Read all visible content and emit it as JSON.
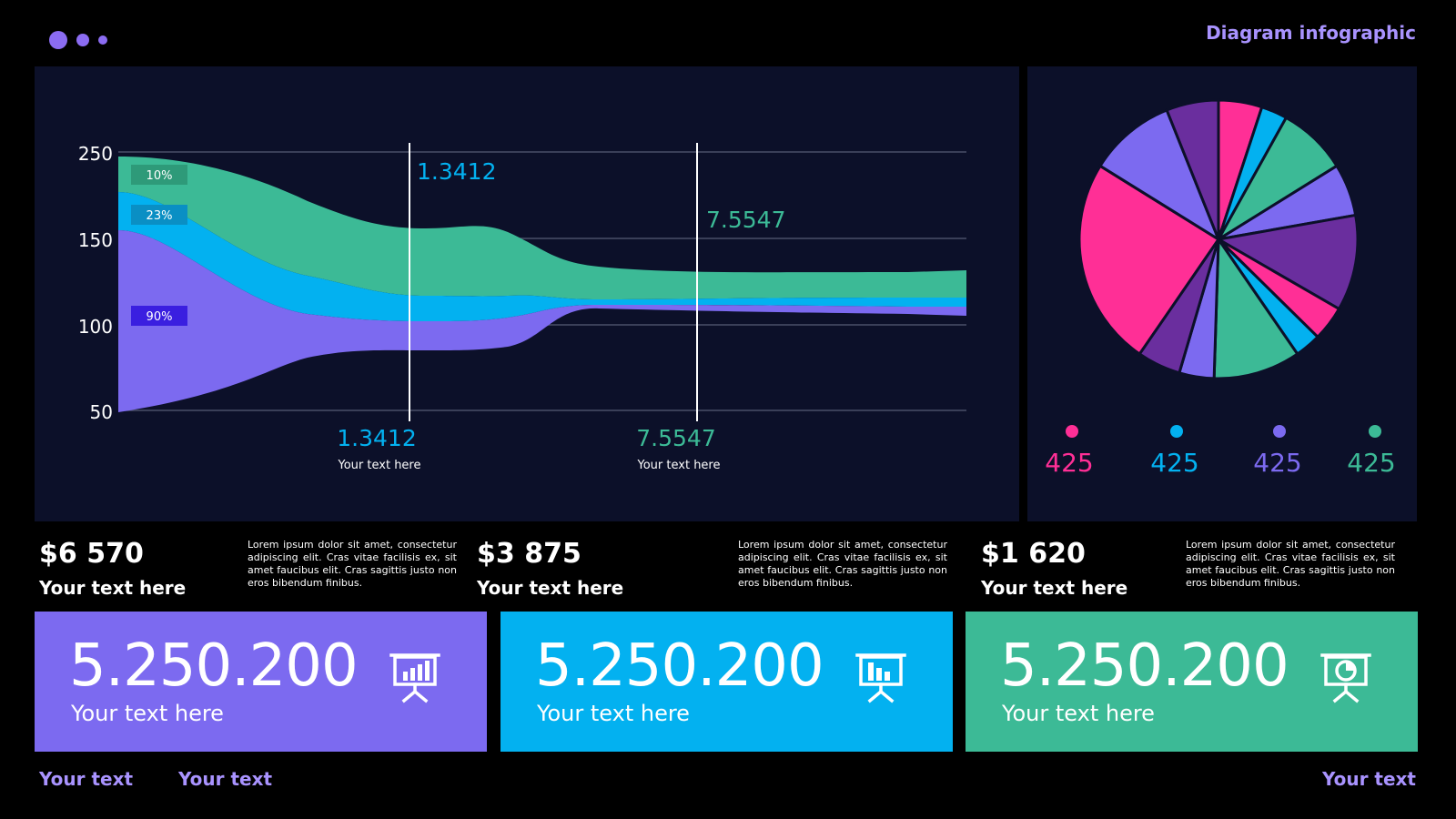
{
  "header": {
    "title": "Diagram infographic"
  },
  "colors": {
    "purple": "#7c6af0",
    "blue": "#03b1f0",
    "green": "#3cba96",
    "pink": "#ff2f96",
    "violet": "#6a2e9e",
    "panel": "#0c1029"
  },
  "chart_data": [
    {
      "type": "area",
      "y_ticks": [
        "250",
        "150",
        "100",
        "50"
      ],
      "bands": [
        {
          "label": "10%",
          "color": "#3cba96"
        },
        {
          "label": "23%",
          "color": "#03b1f0"
        },
        {
          "label": "90%",
          "color": "#7c6af0"
        }
      ],
      "markers": [
        {
          "top_value": "1.3412",
          "bottom_value": "1.3412",
          "caption": "Your text here",
          "color": "#03b1f0"
        },
        {
          "top_value": "7.5547",
          "bottom_value": "7.5547",
          "caption": "Your text here",
          "color": "#3cba96"
        }
      ]
    },
    {
      "type": "pie",
      "slices": [
        {
          "color": "#ff2f96",
          "value": 5
        },
        {
          "color": "#03b1f0",
          "value": 3
        },
        {
          "color": "#3cba96",
          "value": 8
        },
        {
          "color": "#7c6af0",
          "value": 6
        },
        {
          "color": "#6a2e9e",
          "value": 11
        },
        {
          "color": "#ff2f96",
          "value": 4
        },
        {
          "color": "#03b1f0",
          "value": 3
        },
        {
          "color": "#3cba96",
          "value": 10
        },
        {
          "color": "#7c6af0",
          "value": 4
        },
        {
          "color": "#6a2e9e",
          "value": 5
        },
        {
          "color": "#ff2f96",
          "value": 24
        },
        {
          "color": "#7c6af0",
          "value": 10
        },
        {
          "color": "#6a2e9e",
          "value": 6
        }
      ],
      "legend": [
        {
          "value": "425",
          "color": "#ff2f96"
        },
        {
          "value": "425",
          "color": "#03b1f0"
        },
        {
          "value": "425",
          "color": "#7c6af0"
        },
        {
          "value": "425",
          "color": "#3cba96"
        }
      ]
    }
  ],
  "stats": [
    {
      "amount": "$6 570",
      "label": "Your text here",
      "text": "Lorem ipsum dolor sit amet, consectetur adipiscing elit. Cras vitae facilisis ex, sit amet faucibus elit. Cras sagittis justo non eros bibendum finibus."
    },
    {
      "amount": "$3 875",
      "label": "Your text here",
      "text": "Lorem ipsum dolor sit amet, consectetur adipiscing elit. Cras vitae facilisis ex, sit amet faucibus elit. Cras sagittis justo non eros bibendum finibus."
    },
    {
      "amount": "$1 620",
      "label": "Your text here",
      "text": "Lorem ipsum dolor sit amet, consectetur adipiscing elit. Cras vitae facilisis ex, sit amet faucibus elit. Cras sagittis justo non eros bibendum finibus."
    }
  ],
  "cards": [
    {
      "value": "5.250.200",
      "label": "Your text here",
      "color": "#7c6af0",
      "icon": "presentation-bar-chart-icon"
    },
    {
      "value": "5.250.200",
      "label": "Your text here",
      "color": "#03b1f0",
      "icon": "presentation-column-chart-icon"
    },
    {
      "value": "5.250.200",
      "label": "Your text here",
      "color": "#3cba96",
      "icon": "presentation-pie-chart-icon"
    }
  ],
  "footer": [
    "Your text",
    "Your text",
    "Your text"
  ]
}
